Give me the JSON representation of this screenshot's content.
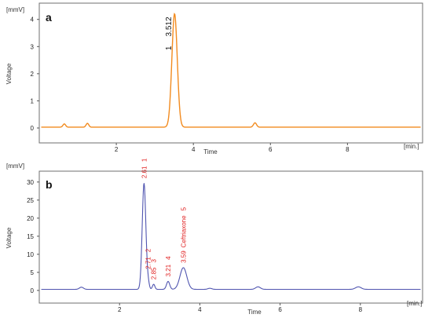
{
  "chart_data": [
    {
      "type": "line",
      "panel_label": "a",
      "ylabel": "Voltage",
      "xlabel": "Time",
      "yunit": "[mmV]",
      "xunit": "[min.]",
      "xlim": [
        0,
        9.95
      ],
      "ylim": [
        -0.55,
        4.6
      ],
      "xticks": [
        2,
        4,
        6,
        8
      ],
      "yticks": [
        0,
        1,
        2,
        3,
        4
      ],
      "baseline": 0.03,
      "line_color": "#f28b1f",
      "trace": [
        {
          "x": 0.65,
          "h": 0.12,
          "w": 0.035
        },
        {
          "x": 1.25,
          "h": 0.14,
          "w": 0.035
        },
        {
          "x": 3.512,
          "h": 4.18,
          "w": 0.07
        },
        {
          "x": 5.6,
          "h": 0.16,
          "w": 0.04
        }
      ],
      "peaks": [
        {
          "x": 3.512,
          "y": 4.21,
          "label": "3.512",
          "number": "1"
        }
      ]
    },
    {
      "type": "line",
      "panel_label": "b",
      "ylabel": "Voltage",
      "xlabel": "Time",
      "yunit": "[mmV]",
      "xunit": "[min.]",
      "xlim": [
        0,
        9.55
      ],
      "ylim": [
        -3.5,
        33
      ],
      "xticks": [
        2,
        4,
        6,
        8
      ],
      "yticks": [
        0,
        5,
        10,
        15,
        20,
        25,
        30
      ],
      "baseline": 0.3,
      "line_color": "#5055b0",
      "trace": [
        {
          "x": 1.05,
          "h": 0.6,
          "w": 0.05
        },
        {
          "x": 2.61,
          "h": 29.4,
          "w": 0.045
        },
        {
          "x": 2.71,
          "h": 1.8,
          "w": 0.03
        },
        {
          "x": 2.85,
          "h": 1.4,
          "w": 0.03
        },
        {
          "x": 3.21,
          "h": 2.2,
          "w": 0.04
        },
        {
          "x": 3.59,
          "h": 6.0,
          "w": 0.085
        },
        {
          "x": 4.25,
          "h": 0.3,
          "w": 0.05
        },
        {
          "x": 5.45,
          "h": 0.7,
          "w": 0.06
        },
        {
          "x": 7.95,
          "h": 0.7,
          "w": 0.07
        }
      ],
      "peaks": [
        {
          "x": 2.61,
          "label": "2.61",
          "number": "1"
        },
        {
          "x": 2.71,
          "label": "2.71",
          "number": "2"
        },
        {
          "x": 2.85,
          "label": "2.85",
          "number": "3"
        },
        {
          "x": 3.21,
          "label": "3.21",
          "number": "4"
        },
        {
          "x": 3.59,
          "label": "3.59",
          "name": "Ceftriaxone",
          "number": "5"
        }
      ]
    }
  ]
}
